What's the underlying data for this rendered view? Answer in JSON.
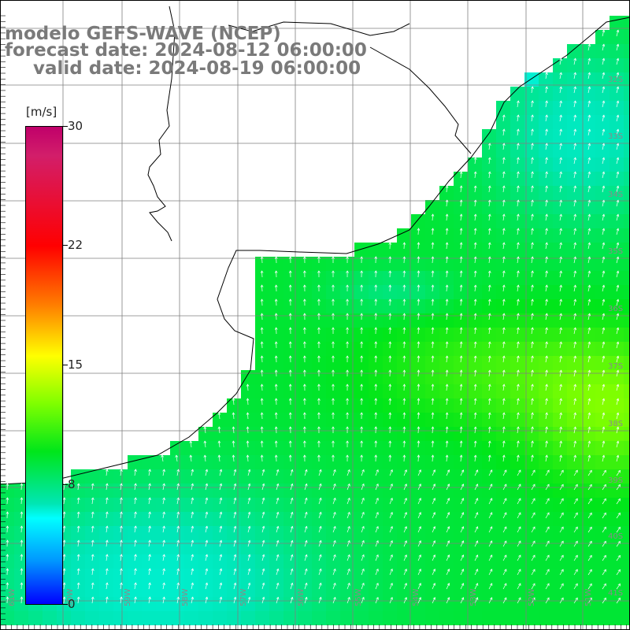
{
  "title": {
    "line1": "modelo GEFS-WAVE (NCEP)",
    "line2": "forecast date: 2024-08-12 06:00:00",
    "line3": "valid date: 2024-08-19 06:00:00"
  },
  "colorbar": {
    "unit": "[m/s]",
    "ticks": [
      "30",
      "22",
      "15",
      "8",
      "0"
    ],
    "tick_values": [
      30,
      22,
      15,
      8,
      0
    ],
    "range": [
      0,
      30
    ],
    "colors": [
      "#0000ff",
      "#0096ff",
      "#00ffff",
      "#00e6b4",
      "#00e61a",
      "#7fff00",
      "#ffff00",
      "#ff7a00",
      "#ff0000",
      "#d21e6a",
      "#c0006a"
    ]
  },
  "map": {
    "lat_labels": [
      "32S",
      "33S",
      "34S",
      "35S",
      "36S",
      "37S",
      "38S",
      "39S",
      "40S",
      "41S"
    ],
    "lon_labels": [
      "61W",
      "60W",
      "59W",
      "58W",
      "57W",
      "56W",
      "55W",
      "54W",
      "53W",
      "52W",
      "51W"
    ],
    "field": "wind speed",
    "vectors": "wind arrows",
    "colors": {
      "land": "#ffffff",
      "coast": "#000000",
      "grid": "#7f7f7f",
      "arrow": "#ffffff",
      "labels": "#8a8a8a"
    }
  }
}
